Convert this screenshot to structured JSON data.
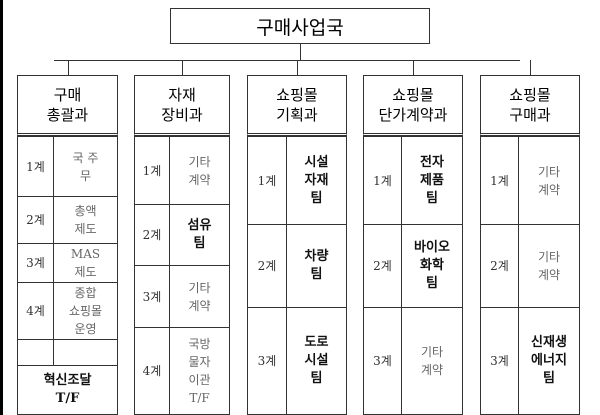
{
  "title": "구매사업국",
  "departments": [
    {
      "name": "구매\n총괄과",
      "rows": [
        {
          "label": "1계",
          "text": "국 주\n무",
          "style": "gray"
        },
        {
          "label": "2계",
          "text": "총액\n제도",
          "style": "gray"
        },
        {
          "label": "3계",
          "text": "MAS\n제도",
          "style": "gray"
        },
        {
          "label": "4계",
          "text": "종합\n쇼핑몰\n운영",
          "style": "gray"
        },
        {
          "label": "",
          "text": "",
          "style": "gray"
        },
        {
          "label": "",
          "text": "혁신조달\nT/F",
          "style": "bold",
          "full": true
        }
      ]
    },
    {
      "name": "자재\n장비과",
      "rows": [
        {
          "label": "1계",
          "text": "기타\n계약",
          "style": "gray"
        },
        {
          "label": "2계",
          "text": "섬유\n팀",
          "style": "bold"
        },
        {
          "label": "3계",
          "text": "기타\n계약",
          "style": "gray"
        },
        {
          "label": "4계",
          "text": "국방\n물자\n이관\nT/F",
          "style": "gray"
        }
      ]
    },
    {
      "name": "쇼핑몰\n기획과",
      "rows": [
        {
          "label": "1계",
          "text": "시설\n자재\n팀",
          "style": "bold"
        },
        {
          "label": "2계",
          "text": "차량\n팀",
          "style": "bold"
        },
        {
          "label": "3계",
          "text": "도로\n시설\n팀",
          "style": "bold"
        }
      ]
    },
    {
      "name": "쇼핑몰\n단가계약과",
      "rows": [
        {
          "label": "1계",
          "text": "전자\n제품\n팀",
          "style": "bold"
        },
        {
          "label": "2계",
          "text": "바이오\n화학\n팀",
          "style": "bold"
        },
        {
          "label": "3계",
          "text": "기타\n계약",
          "style": "gray"
        }
      ]
    },
    {
      "name": "쇼핑몰\n구매과",
      "rows": [
        {
          "label": "1계",
          "text": "기타\n계약",
          "style": "gray"
        },
        {
          "label": "2계",
          "text": "기타\n계약",
          "style": "gray"
        },
        {
          "label": "3계",
          "text": "신재생\n에너지\n팀",
          "style": "bold"
        }
      ]
    }
  ]
}
